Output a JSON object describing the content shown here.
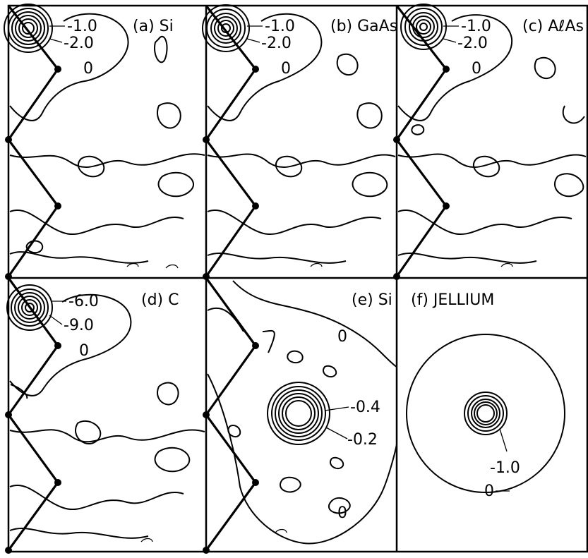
{
  "panels": [
    {
      "id": "a",
      "title": "(a) Si",
      "labels": [
        "-1.0",
        "-2.0",
        "0"
      ]
    },
    {
      "id": "b",
      "title": "(b) GaAs",
      "labels": [
        "-1.0",
        "-2.0",
        "0"
      ]
    },
    {
      "id": "c",
      "title": "(c) AℓAs",
      "labels": [
        "-1.0",
        "-2.0",
        "0"
      ]
    },
    {
      "id": "d",
      "title": "(d) C",
      "labels": [
        "-6.0",
        "-9.0",
        "0"
      ]
    },
    {
      "id": "e",
      "title": "(e) Si",
      "labels": [
        "0",
        "-0.4",
        "-0.2",
        "0"
      ]
    },
    {
      "id": "f",
      "title": "(f) JELLIUM",
      "labels": [
        "-1.0",
        "0"
      ]
    }
  ]
}
